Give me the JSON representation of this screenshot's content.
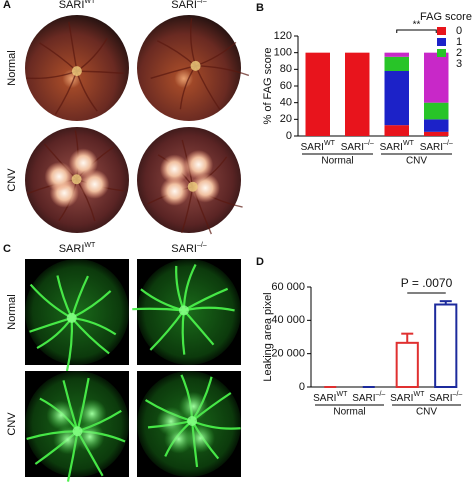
{
  "panels": {
    "a": {
      "letter": "A",
      "columns": [
        {
          "base": "SARI",
          "sup": "WT"
        },
        {
          "base": "SARI",
          "sup": "–/–"
        }
      ],
      "rows": [
        "Normal",
        "CNV"
      ]
    },
    "c": {
      "letter": "C",
      "columns": [
        {
          "base": "SARI",
          "sup": "WT"
        },
        {
          "base": "SARI",
          "sup": "–/–"
        }
      ],
      "rows": [
        "Normal",
        "CNV"
      ]
    }
  },
  "chart_data": [
    {
      "type": "stacked_bar",
      "letter": "B",
      "ylabel": "% of FAG score",
      "legend_title": "FAG score",
      "categories": [
        {
          "base": "SARI",
          "sup": "WT"
        },
        {
          "base": "SARI",
          "sup": "–/–"
        },
        {
          "base": "SARI",
          "sup": "WT"
        },
        {
          "base": "SARI",
          "sup": "–/–"
        }
      ],
      "groups": [
        "Normal",
        "CNV"
      ],
      "annotation": "**",
      "series": [
        {
          "name": "0",
          "color": "#e8141c",
          "values": [
            100,
            100,
            13,
            5
          ]
        },
        {
          "name": "1",
          "color": "#1c22c8",
          "values": [
            0,
            0,
            65,
            15
          ]
        },
        {
          "name": "2",
          "color": "#28c428",
          "values": [
            0,
            0,
            17,
            20
          ]
        },
        {
          "name": "3",
          "color": "#c828c8",
          "values": [
            0,
            0,
            5,
            60
          ]
        }
      ],
      "ylim": [
        0,
        120
      ],
      "yticks": [
        0,
        20,
        40,
        60,
        80,
        100,
        120
      ]
    },
    {
      "type": "bar",
      "letter": "D",
      "ylabel": "Leaking area pixel",
      "categories": [
        {
          "base": "SARI",
          "sup": "WT"
        },
        {
          "base": "SARI",
          "sup": "–/–"
        },
        {
          "base": "SARI",
          "sup": "WT"
        },
        {
          "base": "SARI",
          "sup": "–/–"
        }
      ],
      "groups": [
        "Normal",
        "CNV"
      ],
      "annotation": "P = .0070",
      "values": [
        0,
        0,
        26500,
        49500
      ],
      "errors": [
        0,
        0,
        5500,
        2000
      ],
      "colors": [
        "#e03030",
        "#1c2a9c",
        "#e03030",
        "#1c2a9c"
      ],
      "ylim": [
        0,
        60000
      ],
      "yticks": [
        0,
        {
          "value": 20000,
          "label": "20 000"
        },
        {
          "value": 40000,
          "label": "40 000"
        },
        {
          "value": 60000,
          "label": "60 000"
        }
      ]
    }
  ]
}
